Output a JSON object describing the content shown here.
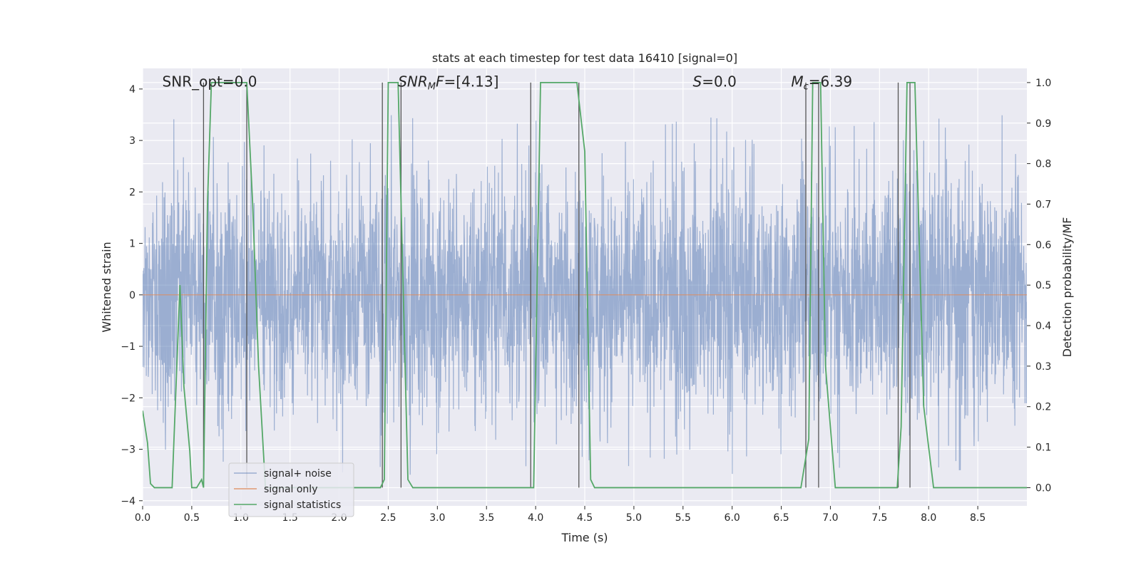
{
  "chart_data": {
    "type": "line",
    "title": "stats at each timestep for test data 16410 [signal=0]",
    "xlabel": "Time (s)",
    "ylabel": "Whitened strain",
    "y2label": "Detection probability/MF",
    "xlim": [
      0.0,
      9.0
    ],
    "ylim": [
      -4.1,
      4.4
    ],
    "y2lim": [
      -0.045,
      1.035
    ],
    "x_ticks": [
      0.0,
      0.5,
      1.0,
      1.5,
      2.0,
      2.5,
      3.0,
      3.5,
      4.0,
      4.5,
      5.0,
      5.5,
      6.0,
      6.5,
      7.0,
      7.5,
      8.0,
      8.5
    ],
    "x_tick_labels": [
      "0.0",
      "0.5",
      "1.0",
      "1.5",
      "2.0",
      "2.5",
      "3.0",
      "3.5",
      "4.0",
      "4.5",
      "5.0",
      "5.5",
      "6.0",
      "6.5",
      "7.0",
      "7.5",
      "8.0",
      "8.5"
    ],
    "y_ticks": [
      -4,
      -3,
      -2,
      -1,
      0,
      1,
      2,
      3,
      4
    ],
    "y_tick_labels": [
      "−4",
      "−3",
      "−2",
      "−1",
      "0",
      "1",
      "2",
      "3",
      "4"
    ],
    "y2_ticks": [
      0.0,
      0.1,
      0.2,
      0.3,
      0.4,
      0.5,
      0.6,
      0.7,
      0.8,
      0.9,
      1.0
    ],
    "y2_tick_labels": [
      "0.0",
      "0.1",
      "0.2",
      "0.3",
      "0.4",
      "0.5",
      "0.6",
      "0.7",
      "0.8",
      "0.9",
      "1.0"
    ],
    "grid": true,
    "legend_position": "lower-left",
    "legend": [
      "signal+ noise",
      "signal only",
      "signal statistics"
    ],
    "colors": {
      "noise": "#4c72b0",
      "signal": "#dd8452",
      "stats": "#55a868",
      "vlines": "#555555",
      "background": "#eaeaf2",
      "grid": "#ffffff"
    },
    "annotations": [
      {
        "label": "SNR_opt=0.0",
        "x": 0.2,
        "y": 4.05
      },
      {
        "label": "SNR_MF=[4.13]",
        "x": 2.6,
        "y": 4.05
      },
      {
        "label": "S=0.0",
        "x": 5.6,
        "y": 4.05
      },
      {
        "label": "M_c=6.39",
        "x": 6.6,
        "y": 4.05
      }
    ],
    "series": [
      {
        "name": "signal+ noise",
        "axis": "left",
        "kind": "noise",
        "description_stats": {
          "core_amplitude": 1.6,
          "peak_max": 3.5,
          "peak_min": -3.65
        }
      },
      {
        "name": "signal only",
        "axis": "left",
        "kind": "line",
        "x": [
          0.0,
          9.0
        ],
        "y": [
          0.0,
          0.0
        ]
      },
      {
        "name": "signal statistics",
        "axis": "right",
        "kind": "line",
        "x": [
          0.0,
          0.05,
          0.08,
          0.12,
          0.2,
          0.3,
          0.38,
          0.42,
          0.48,
          0.5,
          0.52,
          0.55,
          0.6,
          0.62,
          0.66,
          0.7,
          0.75,
          1.0,
          1.06,
          1.12,
          1.18,
          1.25,
          2.35,
          2.42,
          2.46,
          2.5,
          2.6,
          2.7,
          2.75,
          2.82,
          3.92,
          3.98,
          4.05,
          4.1,
          4.42,
          4.5,
          4.56,
          4.6,
          6.62,
          6.7,
          6.78,
          6.82,
          6.9,
          6.95,
          7.05,
          7.62,
          7.68,
          7.72,
          7.78,
          7.86,
          7.95,
          8.05,
          9.0
        ],
        "y": [
          0.19,
          0.11,
          0.01,
          0.0,
          0.0,
          0.0,
          0.5,
          0.25,
          0.09,
          0.0,
          0.0,
          0.0,
          0.02,
          0.0,
          0.7,
          1.0,
          1.0,
          1.0,
          1.0,
          0.7,
          0.3,
          0.0,
          0.0,
          0.0,
          0.02,
          1.0,
          1.0,
          0.02,
          0.0,
          0.0,
          0.0,
          0.0,
          1.0,
          1.0,
          1.0,
          0.83,
          0.02,
          0.0,
          0.0,
          0.0,
          0.12,
          1.0,
          1.0,
          0.3,
          0.0,
          0.0,
          0.0,
          0.15,
          1.0,
          1.0,
          0.2,
          0.0,
          0.0
        ]
      }
    ],
    "vertical_lines": [
      {
        "x": 0.62,
        "y_top": 1.0,
        "y_bottom": 0.0
      },
      {
        "x": 1.06,
        "y_top": 1.0,
        "y_bottom": 0.0
      },
      {
        "x": 2.44,
        "y_top": 1.0,
        "y_bottom": 0.0
      },
      {
        "x": 2.63,
        "y_top": 1.0,
        "y_bottom": 0.0
      },
      {
        "x": 3.95,
        "y_top": 1.0,
        "y_bottom": 0.0
      },
      {
        "x": 4.44,
        "y_top": 1.0,
        "y_bottom": 0.0
      },
      {
        "x": 6.75,
        "y_top": 1.0,
        "y_bottom": 0.0
      },
      {
        "x": 6.88,
        "y_top": 1.0,
        "y_bottom": 0.0
      },
      {
        "x": 7.69,
        "y_top": 1.0,
        "y_bottom": 0.0
      },
      {
        "x": 7.81,
        "y_top": 1.0,
        "y_bottom": 0.0
      }
    ]
  }
}
